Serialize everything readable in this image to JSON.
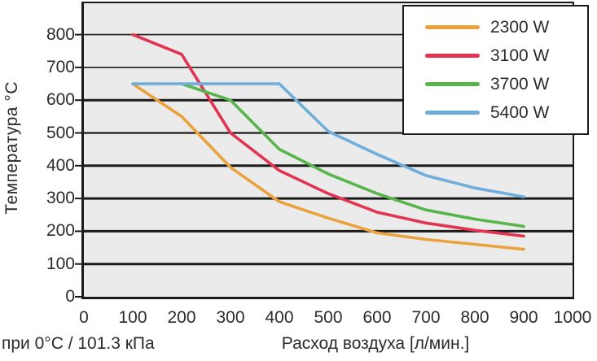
{
  "chart_data": {
    "type": "line",
    "ylabel": "Температура °C",
    "xlabel": "Расход воздуха [л/мин.]",
    "footnote": "при 0°C / 101.3 кПа",
    "x_ticks": [
      0,
      100,
      200,
      300,
      400,
      500,
      600,
      700,
      800,
      900,
      1000
    ],
    "y_ticks": [
      0,
      100,
      200,
      300,
      400,
      500,
      600,
      700,
      800
    ],
    "xlim": [
      0,
      1000
    ],
    "ylim": [
      0,
      900
    ],
    "grid": "horizontal",
    "legend_position": "top-right",
    "plot_bg": "#EBEBEB",
    "axis_color": "#1B1B1B",
    "text_color": "#2B2B2E",
    "series": [
      {
        "name": "2300 W",
        "color": "#EAA23C",
        "points": [
          [
            100,
            650
          ],
          [
            200,
            550
          ],
          [
            300,
            395
          ],
          [
            400,
            290
          ],
          [
            500,
            240
          ],
          [
            600,
            195
          ],
          [
            700,
            175
          ],
          [
            800,
            160
          ],
          [
            900,
            145
          ]
        ]
      },
      {
        "name": "3100 W",
        "color": "#E23450",
        "points": [
          [
            100,
            800
          ],
          [
            200,
            740
          ],
          [
            300,
            500
          ],
          [
            400,
            385
          ],
          [
            500,
            315
          ],
          [
            600,
            258
          ],
          [
            700,
            225
          ],
          [
            800,
            203
          ],
          [
            900,
            185
          ]
        ]
      },
      {
        "name": "3700 W",
        "color": "#57B54B",
        "points": [
          [
            200,
            650
          ],
          [
            300,
            600
          ],
          [
            400,
            450
          ],
          [
            500,
            375
          ],
          [
            600,
            315
          ],
          [
            700,
            265
          ],
          [
            800,
            237
          ],
          [
            900,
            215
          ]
        ]
      },
      {
        "name": "5400 W",
        "color": "#6FAEDB",
        "points": [
          [
            100,
            650
          ],
          [
            400,
            650
          ],
          [
            500,
            505
          ],
          [
            600,
            435
          ],
          [
            700,
            370
          ],
          [
            800,
            332
          ],
          [
            900,
            305
          ]
        ]
      }
    ]
  }
}
